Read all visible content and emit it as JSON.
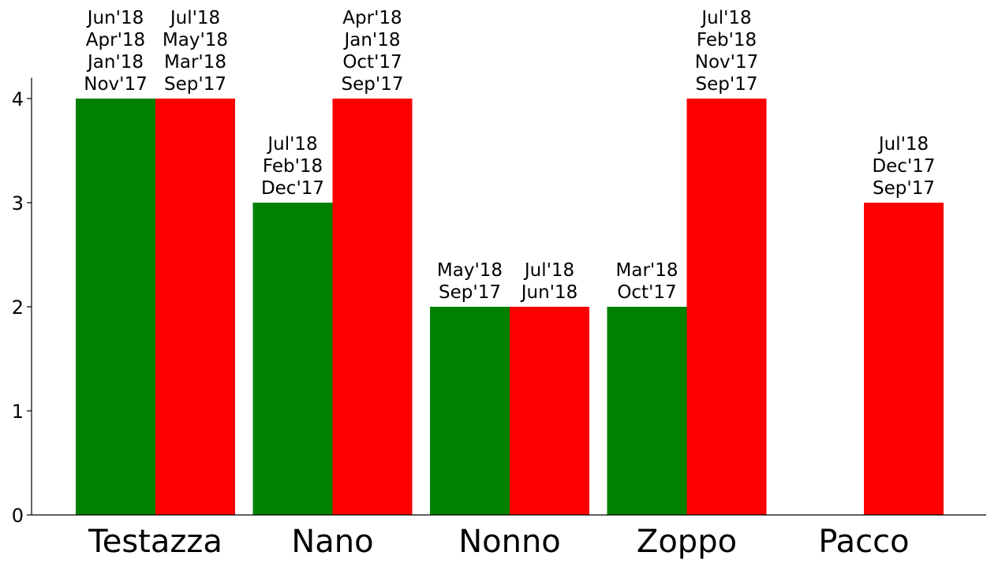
{
  "chart_data": {
    "type": "bar",
    "title": "",
    "xlabel": "",
    "ylabel": "",
    "ylim": [
      0,
      4.2
    ],
    "yticks": [
      0,
      1,
      2,
      3,
      4
    ],
    "grid": false,
    "legend": "none",
    "categories": [
      "Testazza",
      "Nano",
      "Nonno",
      "Zoppo",
      "Pacco"
    ],
    "series": [
      {
        "color": "#008000",
        "values": [
          4,
          3,
          2,
          2,
          0
        ],
        "labels": [
          [
            "Jun'18",
            "Apr'18",
            "Jan'18",
            "Nov'17"
          ],
          [
            "Jul'18",
            "Feb'18",
            "Dec'17"
          ],
          [
            "May'18",
            "Sep'17"
          ],
          [
            "Mar'18",
            "Oct'17"
          ],
          []
        ]
      },
      {
        "color": "#ff0000",
        "values": [
          4,
          4,
          2,
          4,
          3
        ],
        "labels": [
          [
            "Jul'18",
            "May'18",
            "Mar'18",
            "Sep'17"
          ],
          [
            "Apr'18",
            "Jan'18",
            "Oct'17",
            "Sep'17"
          ],
          [
            "Jul'18",
            "Jun'18"
          ],
          [
            "Jul'18",
            "Feb'18",
            "Nov'17",
            "Sep'17"
          ],
          [
            "Jul'18",
            "Dec'17",
            "Sep'17"
          ]
        ]
      }
    ]
  }
}
